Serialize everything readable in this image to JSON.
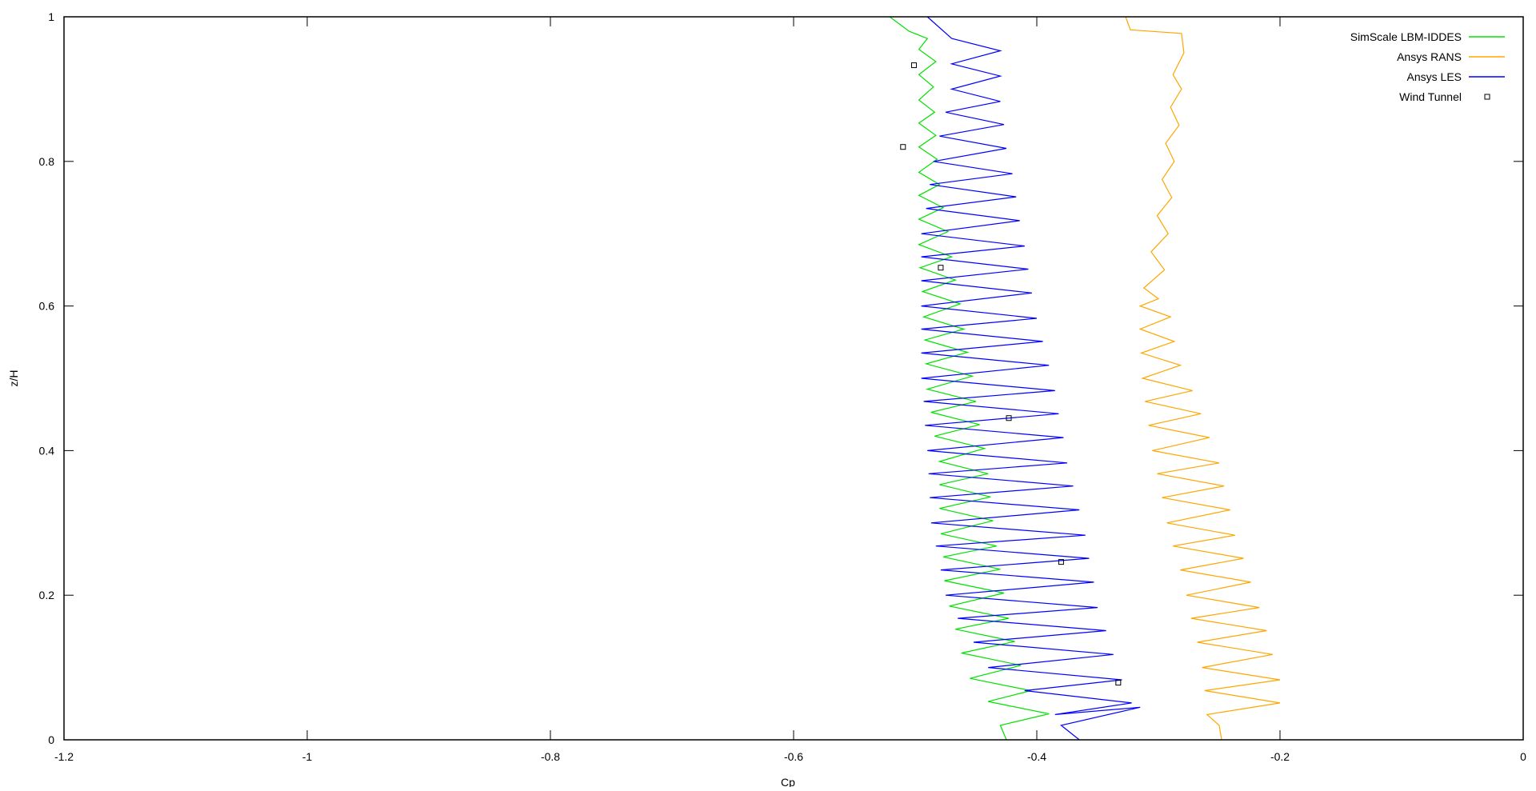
{
  "chart_data": {
    "type": "line",
    "title": "",
    "xlabel": "Cp",
    "ylabel": "z/H",
    "xlim": [
      -1.2,
      0
    ],
    "ylim": [
      0,
      1
    ],
    "xticks": [
      -1.2,
      -1,
      -0.8,
      -0.6,
      -0.4,
      -0.2,
      0
    ],
    "xtick_labels": [
      "-1.2",
      "-1",
      "-0.8",
      "-0.6",
      "-0.4",
      "-0.2",
      "0"
    ],
    "yticks": [
      0,
      0.2,
      0.4,
      0.6,
      0.8,
      1
    ],
    "ytick_labels": [
      "0",
      "0.2",
      "0.4",
      "0.6",
      "0.8",
      "1"
    ],
    "grid": false,
    "legend_position": "top-right",
    "series": [
      {
        "name": "SimScale LBM-IDDES",
        "color": "#00e000",
        "style": "line",
        "points": [
          [
            -0.521,
            1
          ],
          [
            -0.505,
            0.98
          ],
          [
            -0.49,
            0.97
          ],
          [
            -0.497,
            0.955
          ],
          [
            -0.483,
            0.938
          ],
          [
            -0.497,
            0.92
          ],
          [
            -0.485,
            0.903
          ],
          [
            -0.497,
            0.885
          ],
          [
            -0.484,
            0.868
          ],
          [
            -0.497,
            0.853
          ],
          [
            -0.483,
            0.836
          ],
          [
            -0.497,
            0.82
          ],
          [
            -0.482,
            0.803
          ],
          [
            -0.497,
            0.785
          ],
          [
            -0.48,
            0.768
          ],
          [
            -0.497,
            0.753
          ],
          [
            -0.477,
            0.736
          ],
          [
            -0.497,
            0.72
          ],
          [
            -0.473,
            0.703
          ],
          [
            -0.497,
            0.685
          ],
          [
            -0.47,
            0.668
          ],
          [
            -0.496,
            0.653
          ],
          [
            -0.467,
            0.636
          ],
          [
            -0.494,
            0.62
          ],
          [
            -0.463,
            0.603
          ],
          [
            -0.493,
            0.585
          ],
          [
            -0.46,
            0.568
          ],
          [
            -0.492,
            0.553
          ],
          [
            -0.457,
            0.536
          ],
          [
            -0.491,
            0.52
          ],
          [
            -0.453,
            0.503
          ],
          [
            -0.49,
            0.485
          ],
          [
            -0.45,
            0.468
          ],
          [
            -0.487,
            0.453
          ],
          [
            -0.447,
            0.436
          ],
          [
            -0.484,
            0.42
          ],
          [
            -0.443,
            0.403
          ],
          [
            -0.48,
            0.385
          ],
          [
            -0.44,
            0.368
          ],
          [
            -0.48,
            0.353
          ],
          [
            -0.438,
            0.336
          ],
          [
            -0.48,
            0.32
          ],
          [
            -0.436,
            0.303
          ],
          [
            -0.479,
            0.285
          ],
          [
            -0.433,
            0.268
          ],
          [
            -0.477,
            0.253
          ],
          [
            -0.43,
            0.236
          ],
          [
            -0.476,
            0.22
          ],
          [
            -0.427,
            0.203
          ],
          [
            -0.472,
            0.185
          ],
          [
            -0.423,
            0.168
          ],
          [
            -0.467,
            0.153
          ],
          [
            -0.418,
            0.136
          ],
          [
            -0.462,
            0.12
          ],
          [
            -0.413,
            0.103
          ],
          [
            -0.455,
            0.085
          ],
          [
            -0.405,
            0.068
          ],
          [
            -0.44,
            0.053
          ],
          [
            -0.39,
            0.036
          ],
          [
            -0.43,
            0.02
          ],
          [
            -0.425,
            0
          ]
        ]
      },
      {
        "name": "Ansys RANS",
        "color": "#ffa500",
        "style": "line",
        "points": [
          [
            -0.327,
            1
          ],
          [
            -0.323,
            0.982
          ],
          [
            -0.281,
            0.977
          ],
          [
            -0.279,
            0.95
          ],
          [
            -0.288,
            0.92
          ],
          [
            -0.281,
            0.9
          ],
          [
            -0.29,
            0.875
          ],
          [
            -0.283,
            0.85
          ],
          [
            -0.294,
            0.825
          ],
          [
            -0.287,
            0.8
          ],
          [
            -0.297,
            0.775
          ],
          [
            -0.289,
            0.75
          ],
          [
            -0.301,
            0.725
          ],
          [
            -0.292,
            0.7
          ],
          [
            -0.306,
            0.675
          ],
          [
            -0.295,
            0.65
          ],
          [
            -0.312,
            0.625
          ],
          [
            -0.3,
            0.61
          ],
          [
            -0.315,
            0.6
          ],
          [
            -0.29,
            0.585
          ],
          [
            -0.315,
            0.568
          ],
          [
            -0.287,
            0.551
          ],
          [
            -0.314,
            0.535
          ],
          [
            -0.282,
            0.518
          ],
          [
            -0.313,
            0.5
          ],
          [
            -0.272,
            0.483
          ],
          [
            -0.311,
            0.468
          ],
          [
            -0.265,
            0.451
          ],
          [
            -0.308,
            0.435
          ],
          [
            -0.258,
            0.418
          ],
          [
            -0.305,
            0.4
          ],
          [
            -0.25,
            0.383
          ],
          [
            -0.301,
            0.368
          ],
          [
            -0.246,
            0.351
          ],
          [
            -0.297,
            0.335
          ],
          [
            -0.241,
            0.318
          ],
          [
            -0.293,
            0.3
          ],
          [
            -0.237,
            0.283
          ],
          [
            -0.288,
            0.268
          ],
          [
            -0.23,
            0.251
          ],
          [
            -0.282,
            0.235
          ],
          [
            -0.224,
            0.218
          ],
          [
            -0.277,
            0.2
          ],
          [
            -0.217,
            0.183
          ],
          [
            -0.273,
            0.168
          ],
          [
            -0.211,
            0.151
          ],
          [
            -0.268,
            0.135
          ],
          [
            -0.206,
            0.118
          ],
          [
            -0.264,
            0.1
          ],
          [
            -0.2,
            0.083
          ],
          [
            -0.262,
            0.068
          ],
          [
            -0.2,
            0.051
          ],
          [
            -0.26,
            0.035
          ],
          [
            -0.25,
            0.02
          ],
          [
            -0.248,
            0
          ]
        ]
      },
      {
        "name": "Ansys LES",
        "color": "#0000ff",
        "style": "line",
        "points": [
          [
            -0.49,
            1
          ],
          [
            -0.47,
            0.97
          ],
          [
            -0.43,
            0.953
          ],
          [
            -0.47,
            0.935
          ],
          [
            -0.43,
            0.918
          ],
          [
            -0.47,
            0.9
          ],
          [
            -0.43,
            0.883
          ],
          [
            -0.475,
            0.868
          ],
          [
            -0.427,
            0.851
          ],
          [
            -0.48,
            0.835
          ],
          [
            -0.425,
            0.818
          ],
          [
            -0.485,
            0.8
          ],
          [
            -0.42,
            0.783
          ],
          [
            -0.488,
            0.768
          ],
          [
            -0.417,
            0.751
          ],
          [
            -0.491,
            0.735
          ],
          [
            -0.414,
            0.718
          ],
          [
            -0.495,
            0.7
          ],
          [
            -0.41,
            0.683
          ],
          [
            -0.495,
            0.668
          ],
          [
            -0.407,
            0.651
          ],
          [
            -0.495,
            0.635
          ],
          [
            -0.404,
            0.618
          ],
          [
            -0.495,
            0.6
          ],
          [
            -0.4,
            0.583
          ],
          [
            -0.495,
            0.568
          ],
          [
            -0.395,
            0.551
          ],
          [
            -0.495,
            0.535
          ],
          [
            -0.39,
            0.518
          ],
          [
            -0.495,
            0.5
          ],
          [
            -0.385,
            0.483
          ],
          [
            -0.493,
            0.468
          ],
          [
            -0.382,
            0.451
          ],
          [
            -0.492,
            0.435
          ],
          [
            -0.378,
            0.418
          ],
          [
            -0.49,
            0.4
          ],
          [
            -0.375,
            0.383
          ],
          [
            -0.489,
            0.368
          ],
          [
            -0.37,
            0.351
          ],
          [
            -0.488,
            0.335
          ],
          [
            -0.365,
            0.318
          ],
          [
            -0.487,
            0.3
          ],
          [
            -0.36,
            0.283
          ],
          [
            -0.483,
            0.268
          ],
          [
            -0.357,
            0.251
          ],
          [
            -0.479,
            0.235
          ],
          [
            -0.353,
            0.218
          ],
          [
            -0.475,
            0.2
          ],
          [
            -0.35,
            0.183
          ],
          [
            -0.465,
            0.168
          ],
          [
            -0.343,
            0.151
          ],
          [
            -0.452,
            0.135
          ],
          [
            -0.337,
            0.118
          ],
          [
            -0.44,
            0.1
          ],
          [
            -0.33,
            0.083
          ],
          [
            -0.41,
            0.068
          ],
          [
            -0.322,
            0.051
          ],
          [
            -0.385,
            0.035
          ],
          [
            -0.315,
            0.045
          ],
          [
            -0.38,
            0.02
          ],
          [
            -0.365,
            0
          ]
        ]
      },
      {
        "name": "Wind Tunnel",
        "color": "#000000",
        "style": "marker-square",
        "points": [
          [
            -0.501,
            0.933
          ],
          [
            -0.51,
            0.82
          ],
          [
            -0.479,
            0.653
          ],
          [
            -0.423,
            0.445
          ],
          [
            -0.38,
            0.246
          ],
          [
            -0.333,
            0.079
          ]
        ]
      }
    ]
  }
}
